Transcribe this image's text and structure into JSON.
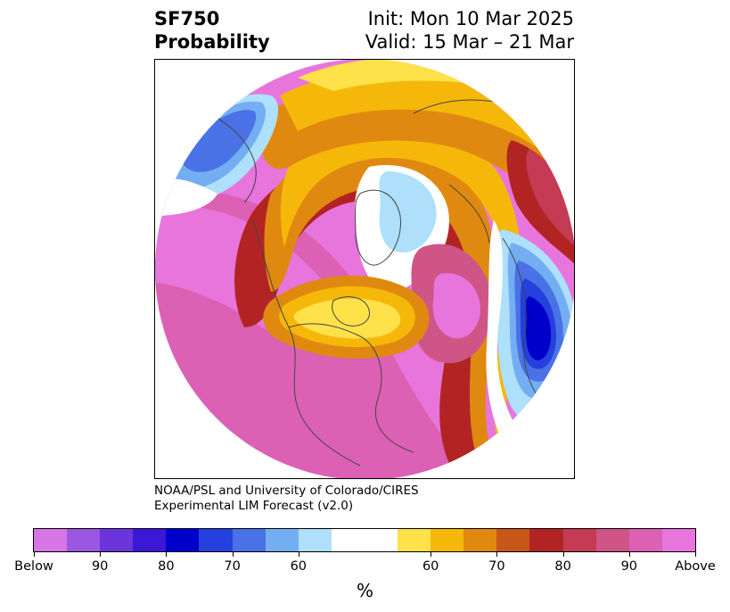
{
  "header": {
    "title_line1": "SF750",
    "title_line2": "Probability",
    "init_text": "Init: Mon 10 Mar 2025",
    "valid_text": "Valid: 15 Mar – 21 Mar"
  },
  "credit": {
    "line1": "NOAA/PSL and University of Colorado/CIRES",
    "line2": "Experimental LIM Forecast (v2.0)"
  },
  "colorbar": {
    "colors": [
      "#d775e6",
      "#9b56e2",
      "#6c35dc",
      "#3b17d6",
      "#0000cc",
      "#2440dd",
      "#4a72e6",
      "#74aef2",
      "#aee0fb",
      "#ffffff",
      "#ffe14a",
      "#f5b80a",
      "#e08910",
      "#c75619",
      "#b22424",
      "#c43b53",
      "#cf5587",
      "#dc60b3",
      "#e775dc"
    ],
    "tick_labels": [
      "Below",
      "90",
      "80",
      "70",
      "60",
      "60",
      "70",
      "80",
      "90",
      "Above"
    ],
    "unit": "%"
  },
  "map": {
    "palette": {
      "above_max": "#e775dc",
      "above_90": "#dc60b3",
      "above_85": "#cf5587",
      "above_80": "#c43b53",
      "above_75": "#b22424",
      "above_70": "#c75619",
      "above_65": "#e08910",
      "above_60": "#f5b80a",
      "above_55": "#ffe14a",
      "neutral": "#ffffff",
      "below_55": "#aee0fb",
      "below_60": "#74aef2",
      "below_65": "#4a72e6",
      "below_70": "#2440dd",
      "below_75": "#0000cc"
    }
  }
}
